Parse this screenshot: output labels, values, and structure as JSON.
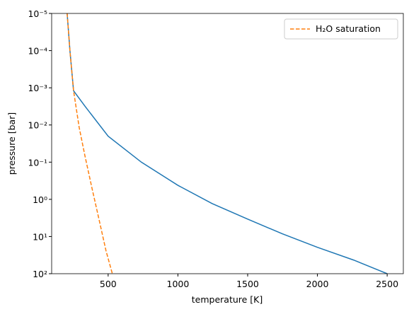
{
  "chart_data": {
    "type": "line",
    "xlabel": "temperature [K]",
    "ylabel": "pressure [bar]",
    "xlim": [
      95,
      2616
    ],
    "xticks": [
      500,
      1000,
      1500,
      2000,
      2500
    ],
    "ylim": [
      1e-05,
      100
    ],
    "yscale": "log",
    "yinverted": true,
    "yticks": [
      {
        "value": 1e-05,
        "label": "10⁻⁵"
      },
      {
        "value": 0.0001,
        "label": "10⁻⁴"
      },
      {
        "value": 0.001,
        "label": "10⁻³"
      },
      {
        "value": 0.01,
        "label": "10⁻²"
      },
      {
        "value": 0.1,
        "label": "10⁻¹"
      },
      {
        "value": 1,
        "label": "10⁰"
      },
      {
        "value": 10,
        "label": "10¹"
      },
      {
        "value": 100,
        "label": "10²"
      }
    ],
    "legend": "upper right",
    "series": [
      {
        "color": "#1f77b4",
        "linestyle": "solid",
        "x": [
          206,
          226,
          252,
          333,
          500,
          738,
          1000,
          1245,
          1500,
          1750,
          2000,
          2260,
          2500
        ],
        "values": [
          1e-05,
          0.0001,
          0.0012,
          0.0031,
          0.02,
          0.1,
          0.42,
          1.3,
          3.4,
          8.5,
          19.5,
          43,
          100
        ]
      },
      {
        "name": "H₂O saturation",
        "color": "#ff7f0e",
        "linestyle": "dashed",
        "x": [
          206,
          226,
          252,
          292,
          333,
          383,
          434,
          485,
          530
        ],
        "values": [
          1e-05,
          0.0001,
          0.0012,
          0.0115,
          0.066,
          0.48,
          3.4,
          24.5,
          100
        ]
      }
    ]
  }
}
